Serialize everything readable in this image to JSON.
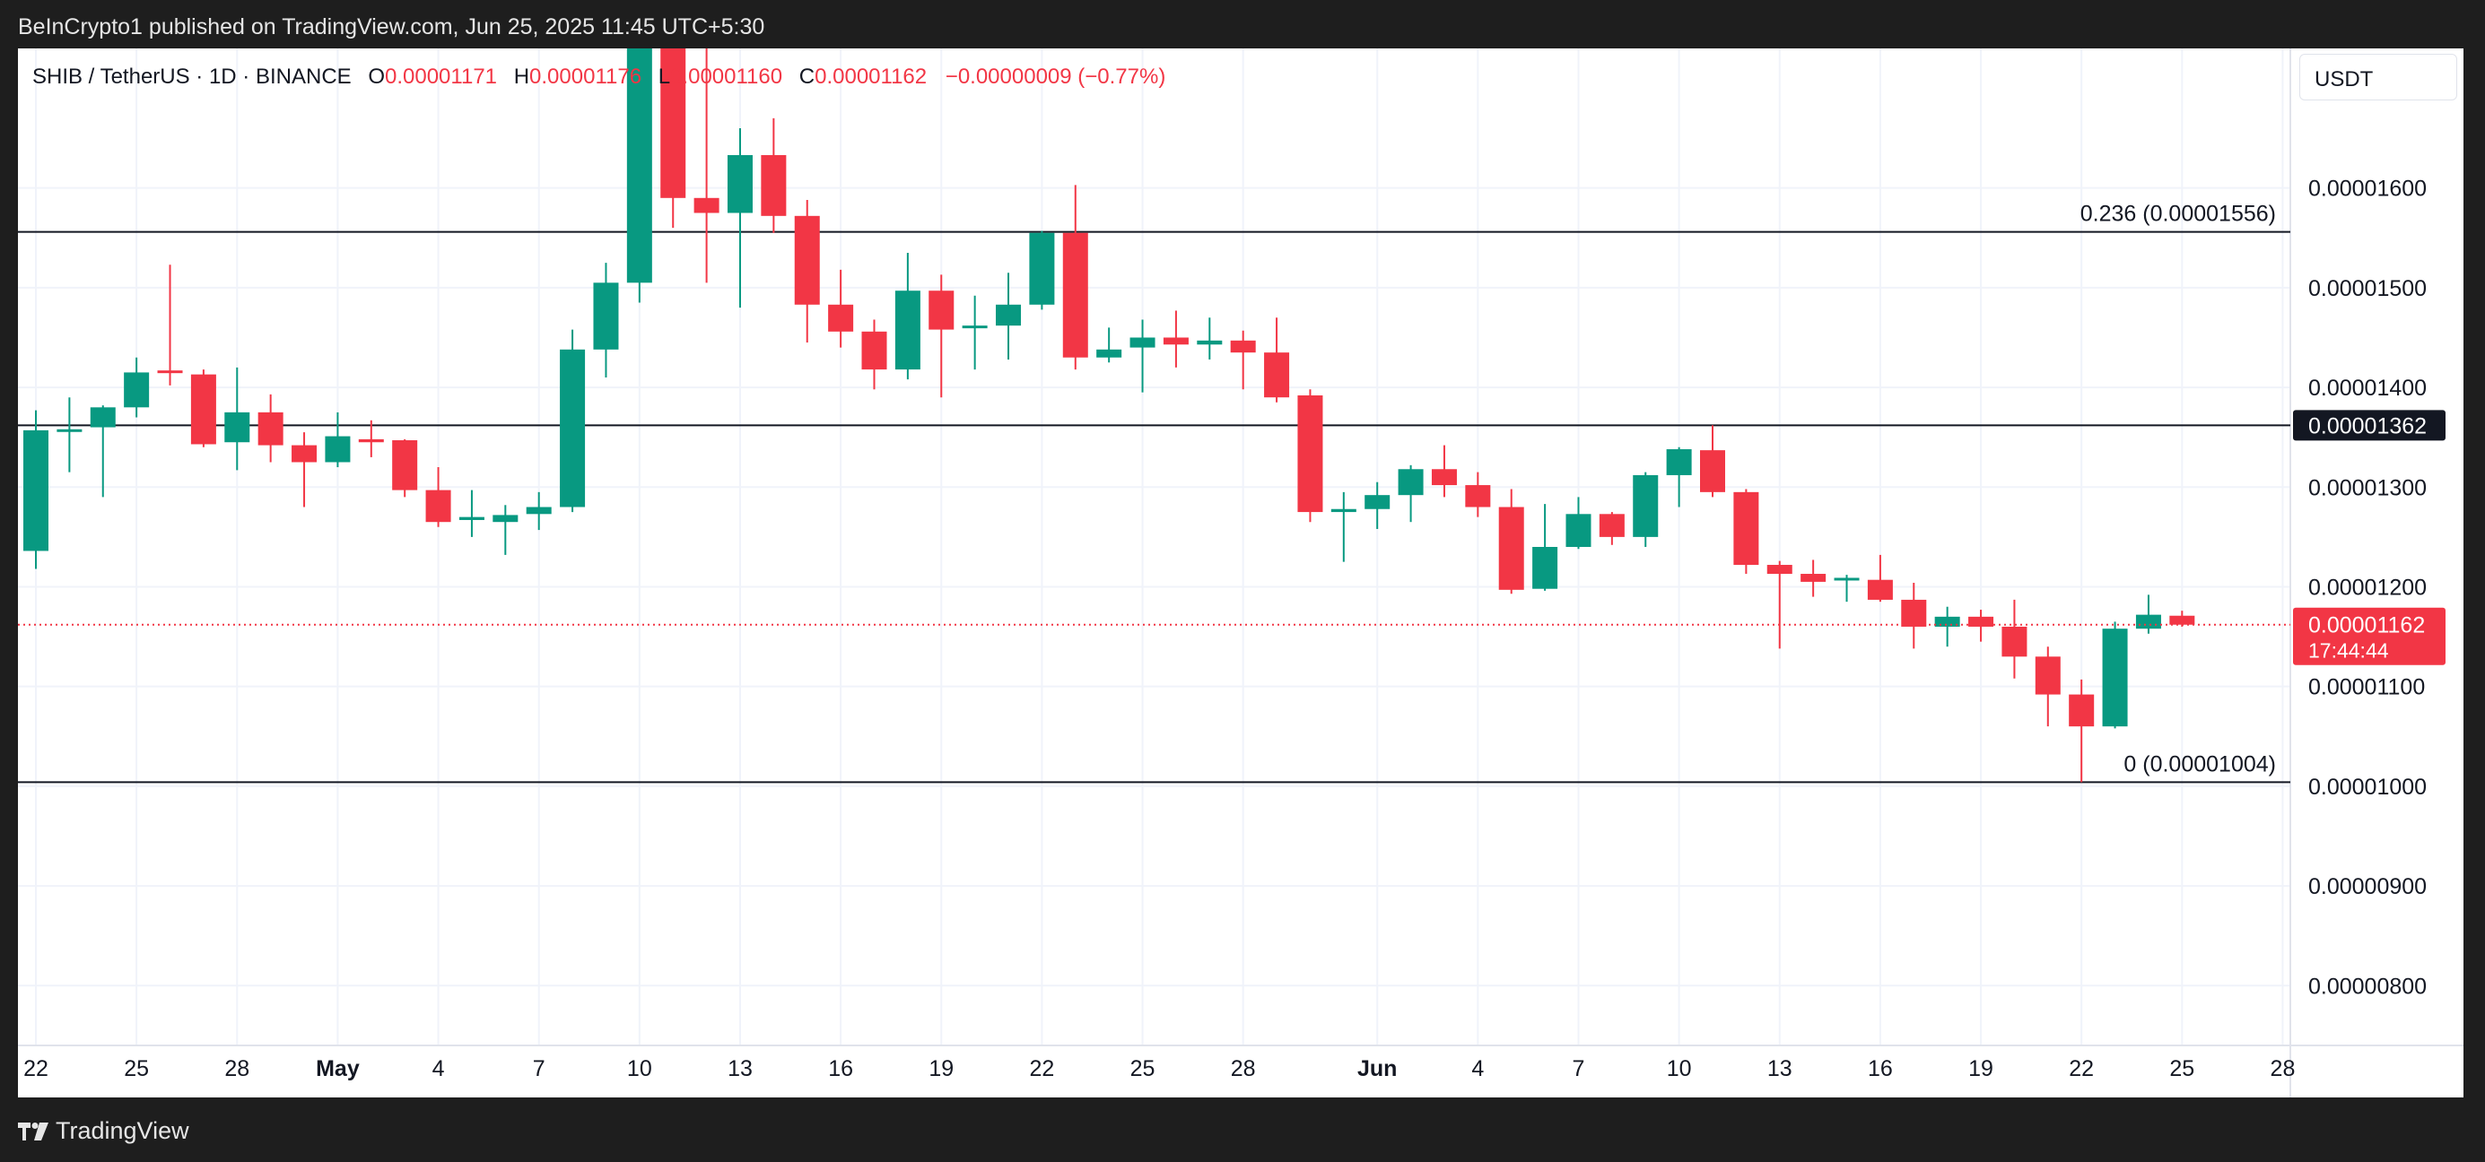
{
  "header": {
    "published": "BeInCrypto1 published on TradingView.com, Jun 25, 2025 11:45 UTC+5:30"
  },
  "legend": {
    "symbol": "SHIB / TetherUS · 1D · BINANCE",
    "o_label": "O",
    "o_value": "0.00001171",
    "h_label": "H",
    "h_value": "0.00001176",
    "l_label": "L",
    "l_value": "0.00001160",
    "c_label": "C",
    "c_value": "0.00001162",
    "change": "−0.00000009 (−0.77%)"
  },
  "currency": "USDT",
  "footer": {
    "brand": "TradingView"
  },
  "colors": {
    "up": "#089981",
    "down": "#f23645",
    "grid": "#f0f3fa",
    "text": "#131722",
    "line": "#131722"
  },
  "chart_data": {
    "type": "candlestick",
    "ylim": [
      7.4e-06,
      1.74e-05
    ],
    "y_ticks": [
      "0.00001600",
      "0.00001500",
      "0.00001400",
      "0.00001300",
      "0.00001200",
      "0.00001100",
      "0.00001000",
      "0.00000900",
      "0.00000800"
    ],
    "y_tick_values": [
      1.6e-05,
      1.5e-05,
      1.4e-05,
      1.3e-05,
      1.2e-05,
      1.1e-05,
      1e-05,
      9e-06,
      8e-06
    ],
    "x_ticks": [
      {
        "label": "22",
        "i": 0
      },
      {
        "label": "25",
        "i": 3
      },
      {
        "label": "28",
        "i": 6
      },
      {
        "label": "May",
        "i": 9,
        "bold": true
      },
      {
        "label": "4",
        "i": 12
      },
      {
        "label": "7",
        "i": 15
      },
      {
        "label": "10",
        "i": 18
      },
      {
        "label": "13",
        "i": 21
      },
      {
        "label": "16",
        "i": 24
      },
      {
        "label": "19",
        "i": 27
      },
      {
        "label": "22",
        "i": 30
      },
      {
        "label": "25",
        "i": 33
      },
      {
        "label": "28",
        "i": 36
      },
      {
        "label": "Jun",
        "i": 40,
        "bold": true
      },
      {
        "label": "4",
        "i": 43
      },
      {
        "label": "7",
        "i": 46
      },
      {
        "label": "10",
        "i": 49
      },
      {
        "label": "13",
        "i": 52
      },
      {
        "label": "16",
        "i": 55
      },
      {
        "label": "19",
        "i": 58
      },
      {
        "label": "22",
        "i": 61
      },
      {
        "label": "25",
        "i": 64
      },
      {
        "label": "28",
        "i": 67
      }
    ],
    "candles": [
      [
        1.236e-05,
        1.357e-05,
        1.218e-05,
        1.377e-05
      ],
      [
        1.356e-05,
        1.358e-05,
        1.315e-05,
        1.39e-05
      ],
      [
        1.36e-05,
        1.38e-05,
        1.29e-05,
        1.382e-05
      ],
      [
        1.38e-05,
        1.415e-05,
        1.37e-05,
        1.43e-05
      ],
      [
        1.417e-05,
        1.415e-05,
        1.402e-05,
        1.523e-05
      ],
      [
        1.413e-05,
        1.343e-05,
        1.34e-05,
        1.418e-05
      ],
      [
        1.345e-05,
        1.375e-05,
        1.317e-05,
        1.42e-05
      ],
      [
        1.375e-05,
        1.342e-05,
        1.325e-05,
        1.393e-05
      ],
      [
        1.342e-05,
        1.325e-05,
        1.28e-05,
        1.355e-05
      ],
      [
        1.325e-05,
        1.351e-05,
        1.32e-05,
        1.375e-05
      ],
      [
        1.348e-05,
        1.345e-05,
        1.33e-05,
        1.367e-05
      ],
      [
        1.347e-05,
        1.297e-05,
        1.29e-05,
        1.348e-05
      ],
      [
        1.297e-05,
        1.265e-05,
        1.26e-05,
        1.32e-05
      ],
      [
        1.267e-05,
        1.27e-05,
        1.25e-05,
        1.297e-05
      ],
      [
        1.265e-05,
        1.272e-05,
        1.232e-05,
        1.282e-05
      ],
      [
        1.273e-05,
        1.28e-05,
        1.257e-05,
        1.295e-05
      ],
      [
        1.28e-05,
        1.438e-05,
        1.275e-05,
        1.458e-05
      ],
      [
        1.438e-05,
        1.505e-05,
        1.41e-05,
        1.525e-05
      ],
      [
        1.505e-05,
        1.74e-05,
        1.485e-05,
        1.775e-05
      ],
      [
        1.74e-05,
        1.59e-05,
        1.56e-05,
        1.76e-05
      ],
      [
        1.59e-05,
        1.575e-05,
        1.505e-05,
        1.745e-05
      ],
      [
        1.575e-05,
        1.633e-05,
        1.48e-05,
        1.66e-05
      ],
      [
        1.633e-05,
        1.572e-05,
        1.555e-05,
        1.67e-05
      ],
      [
        1.572e-05,
        1.483e-05,
        1.445e-05,
        1.588e-05
      ],
      [
        1.483e-05,
        1.456e-05,
        1.44e-05,
        1.518e-05
      ],
      [
        1.456e-05,
        1.418e-05,
        1.398e-05,
        1.468e-05
      ],
      [
        1.418e-05,
        1.497e-05,
        1.408e-05,
        1.535e-05
      ],
      [
        1.497e-05,
        1.458e-05,
        1.39e-05,
        1.513e-05
      ],
      [
        1.46e-05,
        1.462e-05,
        1.418e-05,
        1.492e-05
      ],
      [
        1.462e-05,
        1.483e-05,
        1.428e-05,
        1.515e-05
      ],
      [
        1.483e-05,
        1.555e-05,
        1.478e-05,
        1.557e-05
      ],
      [
        1.555e-05,
        1.43e-05,
        1.418e-05,
        1.603e-05
      ],
      [
        1.43e-05,
        1.438e-05,
        1.425e-05,
        1.46e-05
      ],
      [
        1.44e-05,
        1.45e-05,
        1.395e-05,
        1.468e-05
      ],
      [
        1.45e-05,
        1.443e-05,
        1.42e-05,
        1.477e-05
      ],
      [
        1.443e-05,
        1.447e-05,
        1.428e-05,
        1.47e-05
      ],
      [
        1.447e-05,
        1.435e-05,
        1.398e-05,
        1.457e-05
      ],
      [
        1.435e-05,
        1.39e-05,
        1.385e-05,
        1.47e-05
      ],
      [
        1.392e-05,
        1.275e-05,
        1.265e-05,
        1.398e-05
      ],
      [
        1.275e-05,
        1.278e-05,
        1.225e-05,
        1.295e-05
      ],
      [
        1.278e-05,
        1.292e-05,
        1.258e-05,
        1.305e-05
      ],
      [
        1.292e-05,
        1.318e-05,
        1.265e-05,
        1.322e-05
      ],
      [
        1.318e-05,
        1.302e-05,
        1.29e-05,
        1.342e-05
      ],
      [
        1.302e-05,
        1.28e-05,
        1.27e-05,
        1.315e-05
      ],
      [
        1.28e-05,
        1.197e-05,
        1.193e-05,
        1.298e-05
      ],
      [
        1.198e-05,
        1.24e-05,
        1.196e-05,
        1.283e-05
      ],
      [
        1.24e-05,
        1.273e-05,
        1.238e-05,
        1.29e-05
      ],
      [
        1.273e-05,
        1.25e-05,
        1.242e-05,
        1.275e-05
      ],
      [
        1.25e-05,
        1.312e-05,
        1.24e-05,
        1.315e-05
      ],
      [
        1.312e-05,
        1.338e-05,
        1.28e-05,
        1.34e-05
      ],
      [
        1.337e-05,
        1.295e-05,
        1.29e-05,
        1.362e-05
      ],
      [
        1.295e-05,
        1.222e-05,
        1.213e-05,
        1.298e-05
      ],
      [
        1.222e-05,
        1.213e-05,
        1.138e-05,
        1.226e-05
      ],
      [
        1.213e-05,
        1.205e-05,
        1.19e-05,
        1.227e-05
      ],
      [
        1.207e-05,
        1.209e-05,
        1.185e-05,
        1.212e-05
      ],
      [
        1.207e-05,
        1.187e-05,
        1.185e-05,
        1.232e-05
      ],
      [
        1.187e-05,
        1.16e-05,
        1.138e-05,
        1.204e-05
      ],
      [
        1.16e-05,
        1.17e-05,
        1.14e-05,
        1.18e-05
      ],
      [
        1.17e-05,
        1.16e-05,
        1.145e-05,
        1.177e-05
      ],
      [
        1.16e-05,
        1.13e-05,
        1.108e-05,
        1.187e-05
      ],
      [
        1.13e-05,
        1.092e-05,
        1.06e-05,
        1.14e-05
      ],
      [
        1.092e-05,
        1.06e-05,
        1.004e-05,
        1.107e-05
      ],
      [
        1.06e-05,
        1.158e-05,
        1.058e-05,
        1.165e-05
      ],
      [
        1.158e-05,
        1.172e-05,
        1.153e-05,
        1.192e-05
      ],
      [
        1.171e-05,
        1.162e-05,
        1.16e-05,
        1.176e-05
      ]
    ],
    "hlines": [
      {
        "value": 1.556e-05,
        "label": "0.236 (0.00001556)"
      },
      {
        "value": 1.362e-05,
        "label": "",
        "badge": "0.00001362"
      },
      {
        "value": 1.004e-05,
        "label": "0 (0.00001004)"
      }
    ],
    "last_price": {
      "value": 1.162e-05,
      "label": "0.00001162",
      "countdown": "17:44:44"
    }
  }
}
